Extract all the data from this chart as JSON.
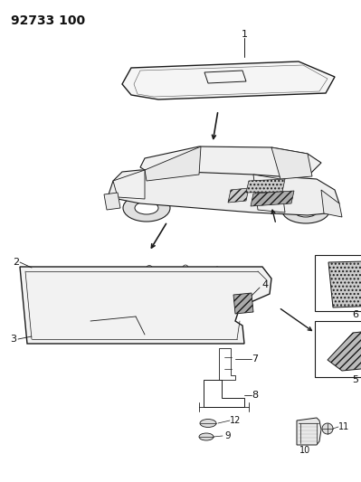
{
  "title": "92733 100",
  "bg_color": "#ffffff",
  "line_color": "#1a1a1a",
  "label_color": "#111111",
  "title_fontsize": 10,
  "label_fontsize": 7.5
}
